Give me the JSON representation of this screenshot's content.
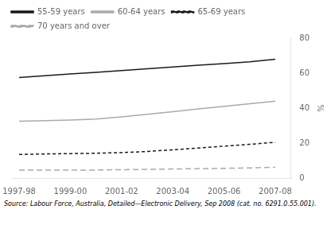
{
  "chart_data": {
    "type": "line",
    "x": [
      1997.5,
      1998.5,
      1999.5,
      2000.5,
      2001.5,
      2002.5,
      2003.5,
      2004.5,
      2005.5,
      2006.5,
      2007.5
    ],
    "series": [
      {
        "name": "55-59 years",
        "color": "#1a1a1a",
        "line_style": "solid",
        "values": [
          57.5,
          58.5,
          59.5,
          60.5,
          61.5,
          62.5,
          63.5,
          64.5,
          65.5,
          66.5,
          68.0
        ]
      },
      {
        "name": "60-64 years",
        "color": "#aaaaaa",
        "line_style": "solid",
        "values": [
          32.5,
          32.8,
          33.2,
          33.8,
          35.0,
          36.5,
          38.0,
          39.5,
          41.0,
          42.5,
          44.0
        ]
      },
      {
        "name": "65-69 years",
        "color": "#1a1a1a",
        "line_style": "dashed",
        "values": [
          13.5,
          13.8,
          14.0,
          14.2,
          14.6,
          15.2,
          16.2,
          17.2,
          18.3,
          19.3,
          20.5
        ]
      },
      {
        "name": "70 years and over",
        "color": "#aaaaaa",
        "line_style": "dashed",
        "values": [
          4.5,
          4.5,
          4.6,
          4.6,
          4.8,
          5.0,
          5.2,
          5.4,
          5.6,
          5.8,
          6.2
        ]
      }
    ],
    "xlim": [
      1997.2,
      2008.1
    ],
    "xticks": [
      {
        "value": 1997.5,
        "label": "1997-98"
      },
      {
        "value": 1999.5,
        "label": "1999-00"
      },
      {
        "value": 2001.5,
        "label": "2001-02"
      },
      {
        "value": 2003.5,
        "label": "2003-04"
      },
      {
        "value": 2005.5,
        "label": "2005-06"
      },
      {
        "value": 2007.5,
        "label": "2007-08"
      }
    ],
    "ylim": [
      0,
      80
    ],
    "yticks": [
      0,
      20,
      40,
      60,
      80
    ],
    "ylabel": "%",
    "annotations": [
      "Source: Labour Force, Australia, Detailed—Electronic Delivery, Sep 2008 (cat. no. 6291.0.55.001)."
    ],
    "grid": false,
    "legend": "upper left"
  }
}
